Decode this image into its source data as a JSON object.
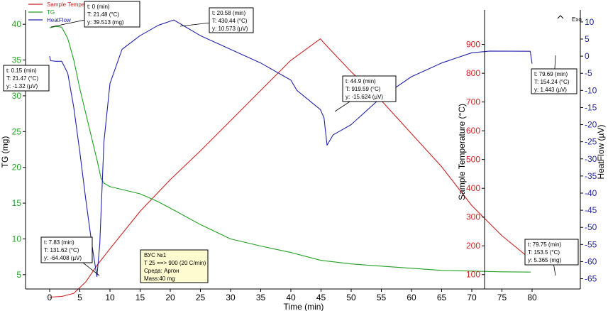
{
  "chart_data": {
    "type": "line",
    "xlabel": "Time (min)",
    "xlim": [
      -4,
      88
    ],
    "x_ticks": [
      0,
      5,
      10,
      15,
      20,
      25,
      30,
      35,
      40,
      45,
      50,
      55,
      60,
      65,
      70,
      75,
      80
    ],
    "axes": {
      "tg": {
        "label": "TG (mg)",
        "ylim": [
          3,
          42
        ],
        "ticks": [
          5,
          10,
          15,
          20,
          25,
          30,
          35,
          40
        ],
        "color": "#22a022"
      },
      "temp": {
        "label": "Sample Temperature (°C)",
        "ylim": [
          50,
          1020
        ],
        "ticks": [
          100,
          200,
          300,
          400,
          500,
          600,
          700,
          800,
          900
        ],
        "color": "#cc2222"
      },
      "hf": {
        "label": "HeatFlow (µV)",
        "ylim": [
          -68,
          13.5
        ],
        "ticks": [
          10,
          5,
          0,
          -5,
          -10,
          -15,
          -20,
          -25,
          -30,
          -35,
          -40,
          -45,
          -50,
          -55,
          -60,
          -65
        ],
        "color": "#2222aa"
      }
    },
    "legend": {
      "position": "top-left",
      "entries": [
        {
          "name": "Sample Temper",
          "color": "#cc2222"
        },
        {
          "name": "TG",
          "color": "#22a022"
        },
        {
          "name": "HeatFlow",
          "color": "#2222aa"
        }
      ]
    },
    "exo_label": "Exo",
    "series": [
      {
        "name": "Sample Temper",
        "axis": "temp",
        "color": "#cc2222",
        "x": [
          0,
          2,
          4,
          6,
          7.83,
          10,
          15,
          20,
          25,
          30,
          35,
          40,
          44.9,
          45.5,
          50,
          55,
          60,
          65,
          70,
          75,
          79.75
        ],
        "y": [
          21.5,
          24,
          35,
          75,
          131.6,
          190,
          320,
          430,
          530,
          635,
          740,
          845,
          919.6,
          905,
          805,
          705,
          590,
          475,
          340,
          235,
          153.5
        ]
      },
      {
        "name": "TG",
        "axis": "tg",
        "color": "#22a022",
        "x": [
          0,
          1,
          2,
          3,
          4,
          5,
          6,
          7,
          8,
          8.5,
          9,
          10,
          12,
          15,
          18,
          20,
          25,
          30,
          35,
          40,
          45,
          50,
          55,
          60,
          65,
          70,
          75,
          79.75
        ],
        "y": [
          39.5,
          39.7,
          39.6,
          38.0,
          35.0,
          31.0,
          27.5,
          24.0,
          20.5,
          18.5,
          17.8,
          17.3,
          16.9,
          16.3,
          15.2,
          14.3,
          12.0,
          10.0,
          9.0,
          8.1,
          7.0,
          6.5,
          6.2,
          5.9,
          5.6,
          5.5,
          5.4,
          5.365
        ]
      },
      {
        "name": "HeatFlow",
        "axis": "hf",
        "color": "#2222aa",
        "x": [
          0,
          0.15,
          1,
          2,
          3,
          4,
          5,
          6,
          7,
          7.83,
          8.3,
          9,
          10,
          12,
          15,
          18,
          20.58,
          25,
          30,
          35,
          40,
          41,
          44.9,
          45.5,
          46,
          47,
          48,
          50,
          55,
          60,
          65,
          70,
          73,
          79.69,
          80
        ],
        "y": [
          0,
          -1.32,
          -1.5,
          -1.5,
          -5,
          -15,
          -28,
          -42,
          -55,
          -64.4,
          -55,
          -25,
          -8,
          2,
          6,
          9,
          10.57,
          6,
          2,
          -2,
          -7,
          -10,
          -15.6,
          -18,
          -26,
          -23,
          -22,
          -20,
          -12,
          -6,
          -2,
          1,
          1.5,
          1.44,
          -2.2
        ]
      }
    ],
    "annotations": [
      {
        "lines": [
          "t: 0 (min)",
          "T: 21.48 (°C)",
          "y: 39.513 (mg)"
        ]
      },
      {
        "lines": [
          "t: 0.15 (min)",
          "T: 21.47 (°C)",
          "y: -1.32 (µV)"
        ]
      },
      {
        "lines": [
          "t: 20.58 (min)",
          "T: 430.44 (°C)",
          "y: 10.573 (µV)"
        ]
      },
      {
        "lines": [
          "t: 44.9 (min)",
          "T: 919.59 (°C)",
          "y: -15.624 (µV)"
        ]
      },
      {
        "lines": [
          "t: 79.69 (min)",
          "T: 154.24 (°C)",
          "y: 1.443 (µV)"
        ]
      },
      {
        "lines": [
          "t: 7.83 (min)",
          "T: 131.62 (°C)",
          "y: -64.408 (µV)"
        ]
      },
      {
        "lines": [
          "t: 79.75 (min)",
          "T: 153.5 (°C)",
          "y: 5.365 (mg)"
        ]
      }
    ],
    "info_box": {
      "lines": [
        "ВУС №1",
        "T  25 ==> 900 (20 C/min)",
        "Среда: Аргон",
        "Mass:40 mg"
      ],
      "background": "#fffbd0"
    }
  }
}
